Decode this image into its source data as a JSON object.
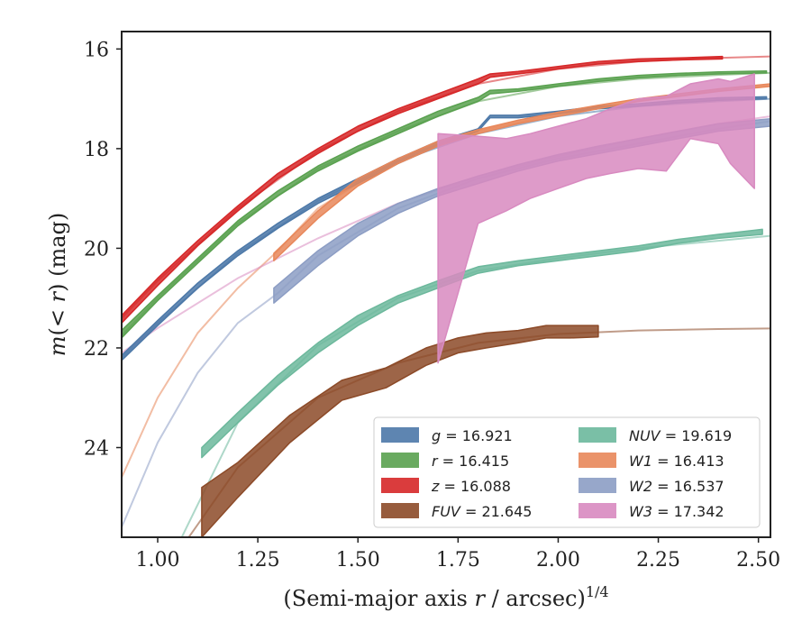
{
  "chart_data": {
    "type": "area",
    "xlabel": "(Semi-major axis r / arcsec)^1/4",
    "ylabel": "m(<r) (mag)",
    "xlim": [
      0.91,
      2.53
    ],
    "ylim": [
      25.8,
      15.65
    ],
    "y_inverted": true,
    "grid": false,
    "legend_position": "lower-right",
    "x_ticks": [
      "1.00",
      "1.25",
      "1.50",
      "1.75",
      "2.00",
      "2.25",
      "2.50"
    ],
    "x_tick_values": [
      1.0,
      1.25,
      1.5,
      1.75,
      2.0,
      2.25,
      2.5
    ],
    "y_ticks": [
      "16",
      "18",
      "20",
      "22",
      "24"
    ],
    "y_tick_values": [
      16,
      18,
      20,
      22,
      24
    ],
    "series": [
      {
        "key": "g",
        "label": "g = 16.921",
        "total": 16.921,
        "color": "#4c78a8",
        "band_x": [
          0.91,
          1.0,
          1.1,
          1.2,
          1.3,
          1.4,
          1.5,
          1.6,
          1.7,
          1.8,
          1.83,
          1.9,
          2.0,
          2.1,
          2.2,
          2.3,
          2.4,
          2.52
        ],
        "band_lo": [
          22.25,
          21.55,
          20.8,
          20.15,
          19.6,
          19.1,
          18.7,
          18.3,
          17.95,
          17.65,
          17.38,
          17.38,
          17.3,
          17.2,
          17.15,
          17.08,
          17.03,
          17.0
        ],
        "band_hi": [
          22.15,
          21.45,
          20.7,
          20.05,
          19.5,
          19.0,
          18.6,
          18.2,
          17.85,
          17.6,
          17.33,
          17.33,
          17.25,
          17.15,
          17.1,
          17.03,
          16.98,
          16.96
        ],
        "model_x": [
          0.91,
          1.0,
          1.2,
          1.4,
          1.6,
          1.8,
          2.0,
          2.2,
          2.4,
          2.53
        ],
        "model_y": [
          22.2,
          21.5,
          20.1,
          19.05,
          18.25,
          17.7,
          17.35,
          17.15,
          17.05,
          17.0
        ]
      },
      {
        "key": "r",
        "label": "r = 16.415",
        "total": 16.415,
        "color": "#59a14f",
        "band_x": [
          0.91,
          1.0,
          1.1,
          1.2,
          1.3,
          1.4,
          1.5,
          1.6,
          1.7,
          1.8,
          1.83,
          1.9,
          2.0,
          2.1,
          2.2,
          2.3,
          2.4,
          2.52
        ],
        "band_lo": [
          21.8,
          21.05,
          20.3,
          19.55,
          18.95,
          18.45,
          18.05,
          17.7,
          17.35,
          17.05,
          16.9,
          16.85,
          16.75,
          16.65,
          16.58,
          16.53,
          16.5,
          16.48
        ],
        "band_hi": [
          21.65,
          20.95,
          20.2,
          19.45,
          18.85,
          18.35,
          17.95,
          17.6,
          17.25,
          16.97,
          16.83,
          16.8,
          16.7,
          16.6,
          16.53,
          16.49,
          16.46,
          16.44
        ],
        "model_x": [
          0.91,
          1.0,
          1.2,
          1.4,
          1.6,
          1.8,
          2.0,
          2.2,
          2.4,
          2.53
        ],
        "model_y": [
          21.75,
          21.0,
          19.5,
          18.4,
          17.65,
          17.05,
          16.75,
          16.6,
          16.52,
          16.48
        ]
      },
      {
        "key": "z",
        "label": "z = 16.088",
        "total": 16.088,
        "color": "#d62728",
        "band_x": [
          0.91,
          1.0,
          1.1,
          1.2,
          1.3,
          1.4,
          1.5,
          1.6,
          1.7,
          1.8,
          1.83,
          1.9,
          2.0,
          2.1,
          2.2,
          2.3,
          2.41
        ],
        "band_lo": [
          21.5,
          20.75,
          19.95,
          19.25,
          18.6,
          18.1,
          17.65,
          17.3,
          17.0,
          16.7,
          16.57,
          16.5,
          16.4,
          16.3,
          16.25,
          16.22,
          16.2
        ],
        "band_hi": [
          21.35,
          20.6,
          19.85,
          19.15,
          18.5,
          18.0,
          17.55,
          17.2,
          16.9,
          16.6,
          16.5,
          16.45,
          16.35,
          16.25,
          16.2,
          16.18,
          16.15
        ],
        "model_x": [
          0.91,
          1.0,
          1.2,
          1.4,
          1.6,
          1.8,
          2.0,
          2.2,
          2.4,
          2.53
        ],
        "model_y": [
          21.4,
          20.65,
          19.2,
          18.05,
          17.25,
          16.7,
          16.4,
          16.25,
          16.18,
          16.15
        ]
      },
      {
        "key": "FUV",
        "label": "FUV = 21.645",
        "total": 21.645,
        "color": "#8c4a28",
        "band_x": [
          1.11,
          1.2,
          1.33,
          1.46,
          1.57,
          1.67,
          1.75,
          1.82,
          1.9,
          1.97,
          2.03,
          2.1
        ],
        "band_lo": [
          25.8,
          25.0,
          23.9,
          23.05,
          22.8,
          22.35,
          22.1,
          22.0,
          21.9,
          21.8,
          21.8,
          21.78
        ],
        "band_hi": [
          24.8,
          24.3,
          23.35,
          22.65,
          22.4,
          22.0,
          21.8,
          21.7,
          21.65,
          21.55,
          21.55,
          21.55
        ],
        "model_x": [
          1.06,
          1.2,
          1.4,
          1.6,
          1.8,
          2.0,
          2.2,
          2.4,
          2.53
        ],
        "model_y": [
          26.0,
          24.4,
          23.0,
          22.3,
          21.9,
          21.72,
          21.65,
          21.62,
          21.61
        ]
      },
      {
        "key": "NUV",
        "label": "NUV = 19.619",
        "total": 19.619,
        "color": "#6cb89c",
        "band_x": [
          1.11,
          1.2,
          1.3,
          1.4,
          1.5,
          1.6,
          1.7,
          1.8,
          1.9,
          2.0,
          2.1,
          2.2,
          2.3,
          2.4,
          2.51
        ],
        "band_lo": [
          24.2,
          23.5,
          22.75,
          22.1,
          21.55,
          21.1,
          20.8,
          20.5,
          20.35,
          20.25,
          20.15,
          20.05,
          19.9,
          19.8,
          19.72
        ],
        "band_hi": [
          24.0,
          23.3,
          22.55,
          21.9,
          21.35,
          20.95,
          20.65,
          20.37,
          20.25,
          20.15,
          20.05,
          19.95,
          19.82,
          19.72,
          19.62
        ],
        "model_x": [
          1.06,
          1.2,
          1.4,
          1.6,
          1.8,
          2.0,
          2.2,
          2.4,
          2.53
        ],
        "model_y": [
          25.8,
          23.5,
          21.95,
          21.0,
          20.45,
          20.2,
          20.0,
          19.85,
          19.75
        ]
      },
      {
        "key": "W1",
        "label": "W1 = 16.413",
        "total": 16.413,
        "color": "#e8875a",
        "band_x": [
          1.29,
          1.4,
          1.5,
          1.6,
          1.7,
          1.8,
          1.9,
          2.0,
          2.1,
          2.2,
          2.3,
          2.4,
          2.53
        ],
        "band_lo": [
          20.25,
          19.4,
          18.75,
          18.3,
          17.95,
          17.7,
          17.5,
          17.35,
          17.2,
          17.05,
          16.95,
          16.85,
          16.75
        ],
        "band_hi": [
          20.1,
          19.25,
          18.6,
          18.2,
          17.85,
          17.62,
          17.43,
          17.27,
          17.13,
          17.0,
          16.9,
          16.8,
          16.7
        ],
        "model_x": [
          0.91,
          1.0,
          1.1,
          1.2,
          1.3,
          1.4,
          1.6,
          1.8,
          2.0,
          2.2,
          2.4,
          2.53
        ],
        "model_y": [
          24.6,
          23.0,
          21.7,
          20.8,
          20.05,
          19.2,
          18.2,
          17.65,
          17.3,
          17.05,
          16.85,
          16.75
        ]
      },
      {
        "key": "W2",
        "label": "W2 = 16.537",
        "total": 16.537,
        "color": "#8c9dc4",
        "band_x": [
          1.29,
          1.4,
          1.5,
          1.6,
          1.7,
          1.8,
          1.9,
          2.0,
          2.1,
          2.2,
          2.3,
          2.4,
          2.53
        ],
        "band_lo": [
          21.1,
          20.35,
          19.75,
          19.3,
          18.95,
          18.7,
          18.45,
          18.25,
          18.1,
          17.95,
          17.8,
          17.65,
          17.55
        ],
        "band_hi": [
          20.8,
          20.05,
          19.5,
          19.1,
          18.8,
          18.55,
          18.32,
          18.12,
          17.95,
          17.8,
          17.65,
          17.5,
          17.4
        ],
        "model_x": [
          0.91,
          1.0,
          1.1,
          1.2,
          1.3,
          1.4,
          1.6,
          1.8,
          2.0,
          2.2,
          2.4,
          2.53
        ],
        "model_y": [
          25.6,
          23.9,
          22.5,
          21.5,
          20.9,
          20.15,
          19.2,
          18.6,
          18.2,
          17.9,
          17.6,
          17.45
        ]
      },
      {
        "key": "W3",
        "label": "W3 = 17.342",
        "total": 17.342,
        "color": "#d88ac0",
        "band_x": [
          1.7,
          1.8,
          1.87,
          1.93,
          2.0,
          2.07,
          2.13,
          2.2,
          2.27,
          2.33,
          2.4,
          2.43,
          2.49
        ],
        "band_lo": [
          22.3,
          19.5,
          19.25,
          19.0,
          18.8,
          18.6,
          18.5,
          18.4,
          18.45,
          17.8,
          17.9,
          18.3,
          18.8
        ],
        "band_hi": [
          17.7,
          17.75,
          17.8,
          17.7,
          17.55,
          17.4,
          17.2,
          17.0,
          16.95,
          16.7,
          16.6,
          16.65,
          16.5
        ],
        "model_x": [
          0.91,
          1.0,
          1.2,
          1.4,
          1.6,
          1.8,
          2.0,
          2.2,
          2.4,
          2.53
        ],
        "model_y": [
          22.1,
          21.6,
          20.6,
          19.8,
          19.1,
          18.55,
          18.15,
          17.8,
          17.5,
          17.35
        ]
      }
    ],
    "legend": [
      [
        "g",
        "NUV"
      ],
      [
        "r",
        "W1"
      ],
      [
        "z",
        "W2"
      ],
      [
        "FUV",
        "W3"
      ]
    ]
  }
}
